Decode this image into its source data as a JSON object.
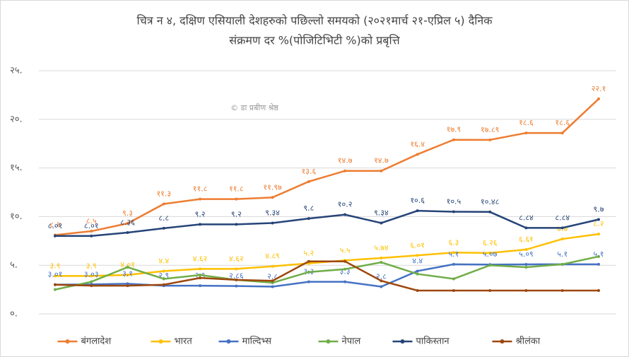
{
  "chart_data": {
    "type": "line",
    "title": [
      "चित्र न ४, दक्षिण एसियाली देशहरुको पछिल्लो समयको (२०२१मार्च २१-एप्रिल ५) दैनिक",
      "संक्रमण दर %(पोजिटिभिटी %)को प्रबृत्ति"
    ],
    "annotation": "© डा प्रबीण श्रेष्ठ",
    "categories": [
      null,
      null,
      null,
      null,
      null,
      null,
      null,
      null,
      null,
      null,
      null,
      null,
      null,
      null,
      null,
      null
    ],
    "ylim": [
      0,
      25
    ],
    "yticks": [
      {
        "value": 0,
        "label": "०."
      },
      {
        "value": 5,
        "label": "५."
      },
      {
        "value": 10,
        "label": "१०."
      },
      {
        "value": 15,
        "label": "१५."
      },
      {
        "value": 20,
        "label": "२०."
      },
      {
        "value": 25,
        "label": "२५."
      }
    ],
    "grid": true,
    "legend": "bottom",
    "series": [
      {
        "name": "बंगलादेश",
        "color": "#ed7d31",
        "values": [
          8.1,
          8.5,
          9.3,
          11.3,
          11.8,
          11.8,
          11.97,
          13.6,
          14.7,
          14.7,
          16.4,
          17.9,
          17.89,
          18.6,
          18.6,
          22.1
        ],
        "value_labels": [
          "८.१",
          "८.५",
          "९.३",
          "११.३",
          "११.८",
          "११.८",
          "११.९७",
          "१३.६",
          "१४.७",
          "१४.७",
          "१६.४",
          "१७.९",
          "१७.८९",
          "१८.६",
          "१८.६",
          "२२.१"
        ]
      },
      {
        "name": "भारत",
        "color": "#ffc000",
        "values": [
          3.9,
          3.9,
          4.01,
          4.4,
          4.62,
          4.62,
          4.89,
          5.2,
          5.5,
          5.74,
          6.01,
          6.3,
          6.26,
          6.61,
          7.7,
          8.2
        ],
        "value_labels": [
          "३.९",
          "३.९",
          "४.०१",
          "४.४",
          "४.६२",
          "४.६२",
          "४.८९",
          "५.२",
          "५.५",
          "५.७४",
          "६.०१",
          "६.३",
          "६.२६",
          "६.६१",
          "७.७",
          "८.२"
        ]
      },
      {
        "name": "माल्दिभ्स",
        "color": "#4472c4",
        "values": [
          3.01,
          3.03,
          3.1,
          2.9,
          2.9,
          2.86,
          2.8,
          3.3,
          3.3,
          2.8,
          4.4,
          5.1,
          5.07,
          5.09,
          5.1,
          5.1
        ],
        "value_labels": [
          "३.०१",
          "३.०३",
          "३.१",
          "२.९",
          "२.९",
          "२.८६",
          "२.८",
          "३.३",
          "३.३",
          "२.८",
          "४.४",
          "५.१",
          "५.०७",
          "५.०९",
          "५.१",
          "५.१"
        ]
      },
      {
        "name": "नेपाल",
        "color": "#70ad47",
        "values": [
          2.5,
          3.3,
          4.8,
          3.6,
          4.0,
          3.5,
          3.2,
          4.3,
          4.6,
          5.3,
          4.1,
          3.6,
          5.0,
          4.8,
          5.1,
          5.9
        ]
      },
      {
        "name": "पाकिस्तान",
        "color": "#264478",
        "values": [
          8.01,
          8.01,
          8.36,
          8.8,
          9.2,
          9.2,
          9.34,
          9.8,
          10.2,
          9.34,
          10.6,
          10.5,
          10.48,
          8.84,
          8.84,
          9.7
        ],
        "value_labels": [
          "८.०१",
          "८.०१",
          "८.३६",
          "८.८",
          "९.२",
          "९.२",
          "९.३४",
          "९.८",
          "१०.२",
          "९.३४",
          "१०.६",
          "१०.५",
          "१०.४८",
          "८.८४",
          "८.८४",
          "९.७"
        ]
      },
      {
        "name": "श्रीलंका",
        "color": "#9e480e",
        "values": [
          3.0,
          2.9,
          2.9,
          3.0,
          3.7,
          3.5,
          3.4,
          5.4,
          5.4,
          3.4,
          2.4,
          2.4,
          2.4,
          2.4,
          2.4,
          2.4
        ]
      }
    ]
  }
}
